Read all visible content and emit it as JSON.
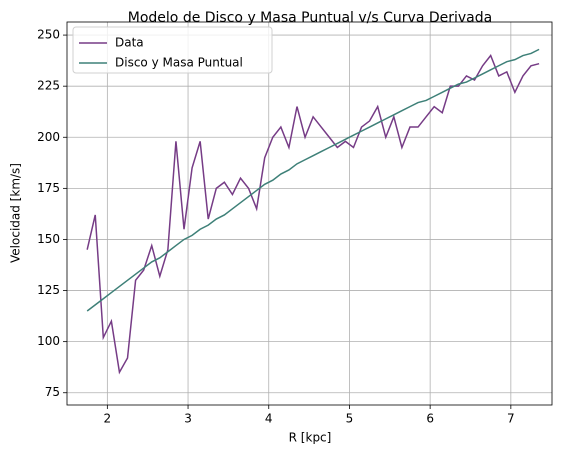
{
  "chart_data": {
    "type": "line",
    "title": "Modelo de Disco y Masa Puntual v/s Curva Derivada",
    "xlabel": "R [kpc]",
    "ylabel": "Velocidad [km/s]",
    "x": [
      1.75,
      1.85,
      1.95,
      2.05,
      2.15,
      2.25,
      2.35,
      2.45,
      2.55,
      2.65,
      2.75,
      2.85,
      2.95,
      3.05,
      3.15,
      3.25,
      3.35,
      3.45,
      3.55,
      3.65,
      3.75,
      3.85,
      3.95,
      4.05,
      4.15,
      4.25,
      4.35,
      4.45,
      4.55,
      4.65,
      4.75,
      4.85,
      4.95,
      5.05,
      5.15,
      5.25,
      5.35,
      5.45,
      5.55,
      5.65,
      5.75,
      5.85,
      5.95,
      6.05,
      6.15,
      6.25,
      6.35,
      6.45,
      6.55,
      6.65,
      6.75,
      6.85,
      6.95,
      7.05,
      7.15,
      7.25,
      7.35
    ],
    "series": [
      {
        "name": "Data",
        "color": "#763c86",
        "values": [
          145,
          162,
          102,
          110,
          85,
          92,
          130,
          135,
          147,
          132,
          145,
          198,
          155,
          185,
          198,
          160,
          175,
          178,
          172,
          180,
          175,
          165,
          190,
          200,
          205,
          195,
          215,
          200,
          210,
          205,
          200,
          195,
          198,
          195,
          205,
          208,
          215,
          200,
          210,
          195,
          205,
          205,
          210,
          215,
          212,
          225,
          225,
          230,
          228,
          235,
          240,
          230,
          232,
          222,
          230,
          235,
          236
        ]
      },
      {
        "name": "Disco y Masa Puntual",
        "color": "#3e8078",
        "values": [
          115,
          118,
          121,
          124,
          127,
          130,
          133,
          136,
          139,
          141,
          144,
          147,
          150,
          152,
          155,
          157,
          160,
          162,
          165,
          168,
          171,
          174,
          177,
          179,
          182,
          184,
          187,
          189,
          191,
          193,
          195,
          197,
          199,
          201,
          203,
          205,
          207,
          209,
          211,
          213,
          215,
          217,
          218,
          220,
          222,
          224,
          226,
          227,
          229,
          231,
          233,
          235,
          237,
          238,
          240,
          241,
          243
        ]
      }
    ],
    "xlim": [
      1.5,
      7.51
    ],
    "ylim": [
      69,
      256.4
    ],
    "xticks": [
      2,
      3,
      4,
      5,
      6,
      7
    ],
    "yticks": [
      75,
      100,
      125,
      150,
      175,
      200,
      225,
      250
    ],
    "grid": true,
    "legend": "upper left"
  }
}
